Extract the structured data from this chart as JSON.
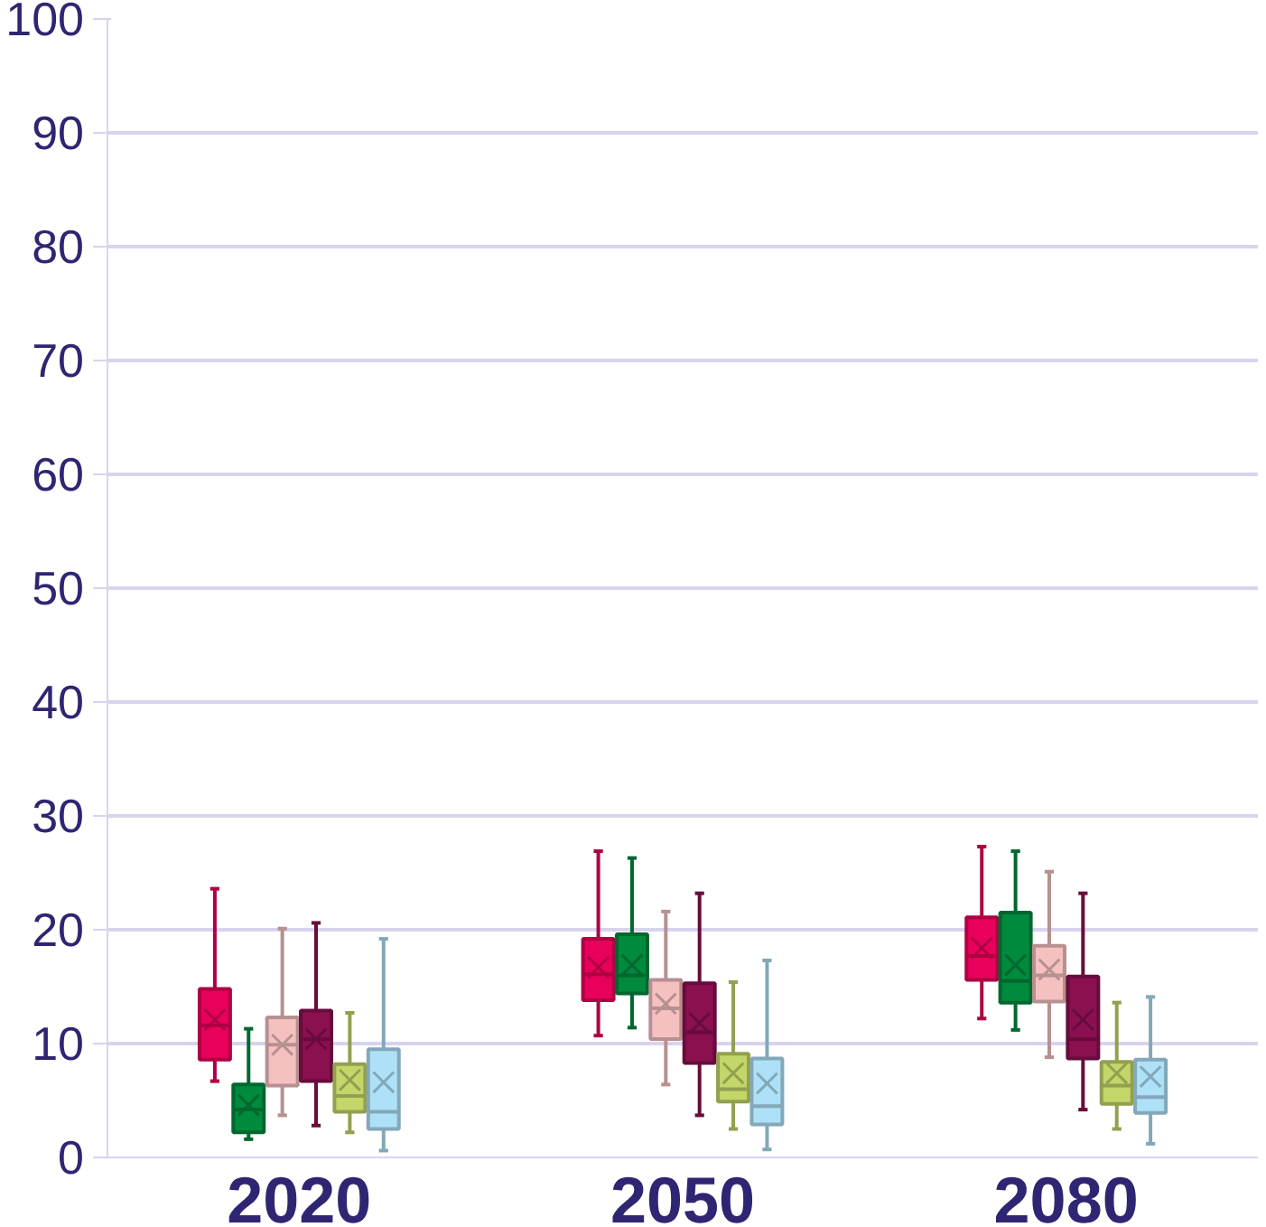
{
  "chart_data": {
    "type": "box",
    "categories": [
      "2020",
      "2050",
      "2080"
    ],
    "ylim": [
      0,
      100
    ],
    "yticks": [
      0,
      10,
      20,
      30,
      40,
      50,
      60,
      70,
      80,
      90,
      100
    ],
    "grid": "y",
    "series": [
      {
        "color": "#e8005a",
        "boxes": [
          {
            "low": 6.7,
            "q1": 8.6,
            "median": 11.6,
            "q3": 14.8,
            "high": 23.6,
            "mean": 12.1
          },
          {
            "low": 10.7,
            "q1": 13.8,
            "median": 16.1,
            "q3": 19.2,
            "high": 26.9,
            "mean": 16.7
          },
          {
            "low": 12.2,
            "q1": 15.6,
            "median": 17.7,
            "q3": 21.1,
            "high": 27.3,
            "mean": 18.4
          }
        ]
      },
      {
        "color": "#008a3e",
        "boxes": [
          {
            "low": 1.6,
            "q1": 2.2,
            "median": 4.2,
            "q3": 6.4,
            "high": 11.3,
            "mean": 4.6
          },
          {
            "low": 11.4,
            "q1": 14.4,
            "median": 16.0,
            "q3": 19.6,
            "high": 26.3,
            "mean": 16.9
          },
          {
            "low": 11.2,
            "q1": 13.6,
            "median": 15.5,
            "q3": 21.5,
            "high": 26.9,
            "mean": 16.9
          }
        ]
      },
      {
        "color": "#f5c0c0",
        "boxes": [
          {
            "low": 3.7,
            "q1": 6.3,
            "median": 9.9,
            "q3": 12.3,
            "high": 20.1,
            "mean": 9.9
          },
          {
            "low": 6.4,
            "q1": 10.4,
            "median": 13.1,
            "q3": 15.6,
            "high": 21.6,
            "mean": 13.5
          },
          {
            "low": 8.8,
            "q1": 13.7,
            "median": 16.0,
            "q3": 18.6,
            "high": 25.1,
            "mean": 16.5
          }
        ]
      },
      {
        "color": "#8a1050",
        "boxes": [
          {
            "low": 2.8,
            "q1": 6.7,
            "median": 10.4,
            "q3": 12.9,
            "high": 20.6,
            "mean": 10.4
          },
          {
            "low": 3.7,
            "q1": 8.3,
            "median": 11.0,
            "q3": 15.3,
            "high": 23.2,
            "mean": 11.8
          },
          {
            "low": 4.2,
            "q1": 8.7,
            "median": 10.4,
            "q3": 15.9,
            "high": 23.2,
            "mean": 12.1
          }
        ]
      },
      {
        "color": "#c3d66a",
        "boxes": [
          {
            "low": 2.2,
            "q1": 4.0,
            "median": 5.4,
            "q3": 8.2,
            "high": 12.7,
            "mean": 6.8
          },
          {
            "low": 2.5,
            "q1": 4.9,
            "median": 6.0,
            "q3": 9.1,
            "high": 15.4,
            "mean": 7.4
          },
          {
            "low": 2.5,
            "q1": 4.7,
            "median": 6.3,
            "q3": 8.4,
            "high": 13.6,
            "mean": 7.4
          }
        ]
      },
      {
        "color": "#aee0f7",
        "boxes": [
          {
            "low": 0.6,
            "q1": 2.5,
            "median": 4.0,
            "q3": 9.5,
            "high": 19.2,
            "mean": 6.6
          },
          {
            "low": 0.7,
            "q1": 2.9,
            "median": 4.5,
            "q3": 8.7,
            "high": 17.3,
            "mean": 6.5
          },
          {
            "low": 1.2,
            "q1": 3.9,
            "median": 5.3,
            "q3": 8.6,
            "high": 14.1,
            "mean": 7.1
          }
        ]
      }
    ]
  }
}
